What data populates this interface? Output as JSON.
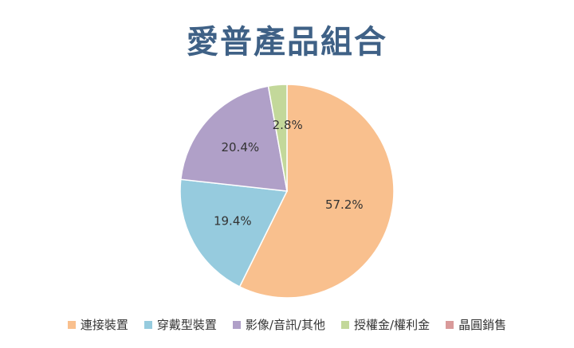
{
  "chart_data": {
    "type": "pie",
    "title": "愛普產品組合",
    "categories": [
      "連接裝置",
      "穿戴型裝置",
      "影像/音訊/其他",
      "授權金/權利金",
      "晶圓銷售"
    ],
    "values": [
      57.2,
      19.4,
      20.4,
      2.8,
      0
    ],
    "data_labels": [
      "57.2%",
      "19.4%",
      "20.4%",
      "2.8%",
      ""
    ],
    "colors": [
      "#f9c08e",
      "#96cbde",
      "#b0a0c8",
      "#c3d89a",
      "#d99a9a"
    ],
    "legend_position": "bottom",
    "start_angle_deg": 0,
    "direction": "clockwise"
  }
}
